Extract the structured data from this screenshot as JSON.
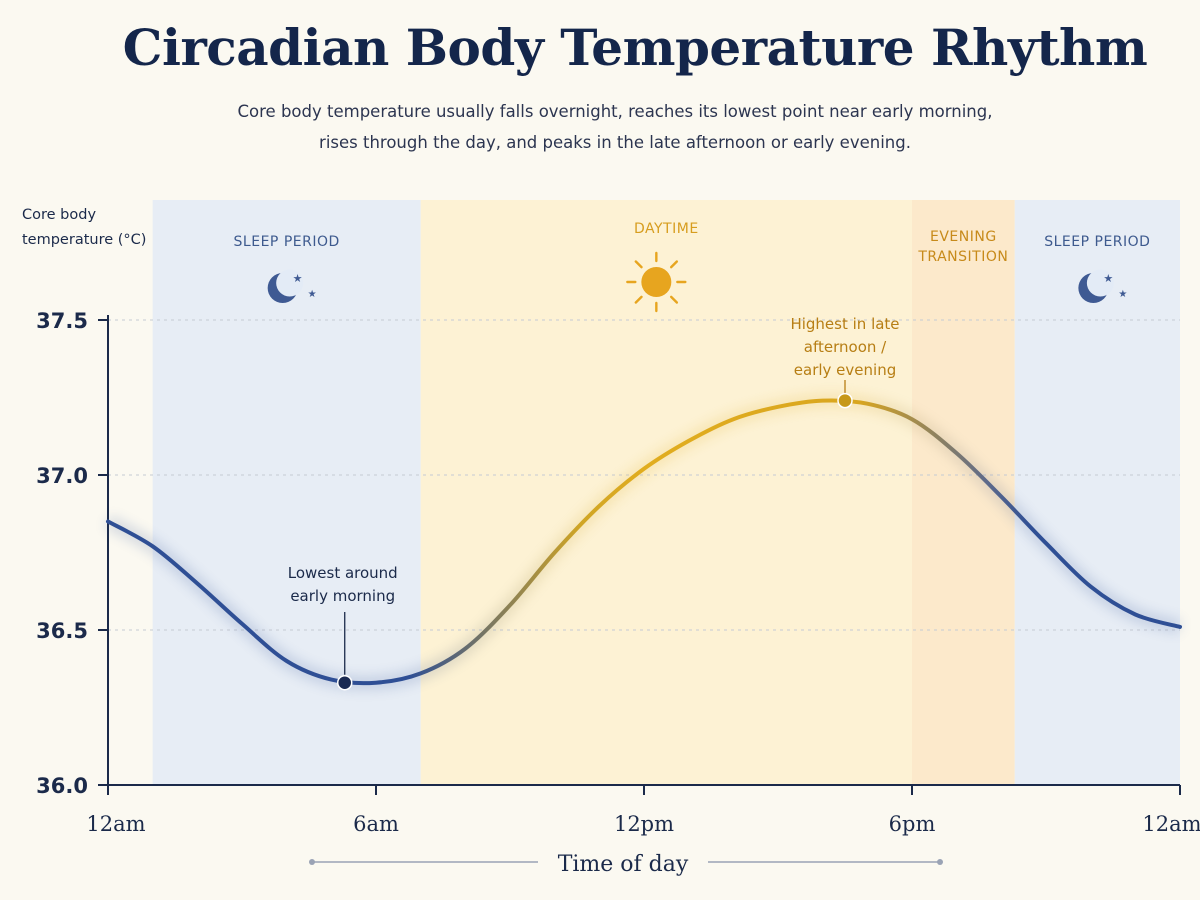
{
  "title": "Circadian Body Temperature Rhythm",
  "subtitle_lines": [
    "Core body temperature usually falls overnight, reaches its lowest point near early morning,",
    "rises through the day, and peaks in the late afternoon or early evening."
  ],
  "colors": {
    "night_line": "#2f4f95",
    "day_line": "#e1ad1f",
    "peak_line": "#c79818",
    "sleep_band": "#e3ebf6",
    "day_band": "#fdf1cf",
    "evening_band": "#fce6c4",
    "sleep_text": "#3e5a8e",
    "day_text": "#d79d1e",
    "evening_text": "#c78a1a",
    "peak_text": "#b77e14",
    "low_point": "#1a2a52"
  },
  "chart_data": {
    "type": "line",
    "title": "Circadian Body Temperature Rhythm",
    "xlabel": "Time of day",
    "ylabel_lines": [
      "Core body",
      "temperature (°C)"
    ],
    "xlim": [
      0,
      24
    ],
    "ylim": [
      36.0,
      37.6
    ],
    "x_ticks": [
      0,
      6,
      12,
      18,
      24
    ],
    "x_tick_labels": [
      "12am",
      "6am",
      "12pm",
      "6pm",
      "12am"
    ],
    "y_ticks": [
      36.0,
      36.5,
      37.0,
      37.5
    ],
    "y_tick_labels": [
      "36.0",
      "36.5",
      "37.0",
      "37.5"
    ],
    "grid": "horizontal dotted",
    "series": [
      {
        "x": [
          0,
          1,
          2,
          3,
          4,
          5,
          6,
          7,
          8,
          9,
          10,
          11,
          12,
          13,
          14,
          15,
          16,
          17,
          18,
          19,
          20,
          21,
          22,
          23,
          24
        ],
        "y": [
          36.85,
          36.77,
          36.65,
          36.52,
          36.4,
          36.34,
          36.33,
          36.36,
          36.44,
          36.58,
          36.75,
          36.9,
          37.02,
          37.11,
          37.18,
          37.22,
          37.24,
          37.23,
          37.18,
          37.07,
          36.93,
          36.78,
          36.64,
          36.55,
          36.51
        ]
      }
    ],
    "bands": [
      {
        "label": "SLEEP PERIOD",
        "x0": 1,
        "x1": 7
      },
      {
        "label": "DAYTIME",
        "x0": 7,
        "x1": 18
      },
      {
        "label_lines": [
          "EVENING",
          "TRANSITION"
        ],
        "x0": 18,
        "x1": 20.3
      },
      {
        "label": "SLEEP PERIOD",
        "x0": 20.3,
        "x1": 24
      }
    ],
    "annotations": [
      {
        "label_lines": [
          "Lowest around",
          "early morning"
        ],
        "x": 5.3,
        "y": 36.33
      },
      {
        "label_lines": [
          "Highest in late",
          "afternoon /",
          "early evening"
        ],
        "x": 16.5,
        "y": 37.24
      }
    ]
  }
}
